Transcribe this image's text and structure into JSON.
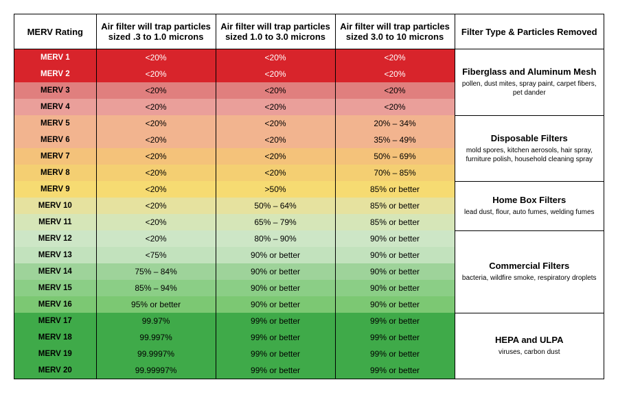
{
  "headers": {
    "col1": "MERV Rating",
    "col2": "Air filter will trap particles sized .3 to 1.0 microns",
    "col3": "Air filter will trap particles sized 1.0 to 3.0 microns",
    "col4": "Air filter will trap particles sized 3.0 to 10 microns",
    "col5": "Filter Type & Particles Removed"
  },
  "rows": [
    {
      "label": "MERV 1",
      "c1": "<20%",
      "c2": "<20%",
      "c3": "<20%",
      "bg": "#d8242b",
      "fg": "#ffffff"
    },
    {
      "label": "MERV 2",
      "c1": "<20%",
      "c2": "<20%",
      "c3": "<20%",
      "bg": "#d8242b",
      "fg": "#ffffff"
    },
    {
      "label": "MERV 3",
      "c1": "<20%",
      "c2": "<20%",
      "c3": "<20%",
      "bg": "#e07f7e",
      "fg": "#000000"
    },
    {
      "label": "MERV 4",
      "c1": "<20%",
      "c2": "<20%",
      "c3": "<20%",
      "bg": "#ea9f9a",
      "fg": "#000000"
    },
    {
      "label": "MERV 5",
      "c1": "<20%",
      "c2": "<20%",
      "c3": "20% – 34%",
      "bg": "#f2b48f",
      "fg": "#000000"
    },
    {
      "label": "MERV 6",
      "c1": "<20%",
      "c2": "<20%",
      "c3": "35% – 49%",
      "bg": "#f2b48f",
      "fg": "#000000"
    },
    {
      "label": "MERV 7",
      "c1": "<20%",
      "c2": "<20%",
      "c3": "50% – 69%",
      "bg": "#f4c27a",
      "fg": "#000000"
    },
    {
      "label": "MERV 8",
      "c1": "<20%",
      "c2": "<20%",
      "c3": "70% – 85%",
      "bg": "#f4cf72",
      "fg": "#000000"
    },
    {
      "label": "MERV 9",
      "c1": "<20%",
      "c2": ">50%",
      "c3": "85% or better",
      "bg": "#f6db72",
      "fg": "#000000"
    },
    {
      "label": "MERV 10",
      "c1": "<20%",
      "c2": "50% – 64%",
      "c3": "85% or better",
      "bg": "#e6e29f",
      "fg": "#000000"
    },
    {
      "label": "MERV 11",
      "c1": "<20%",
      "c2": "65% – 79%",
      "c3": "85% or better",
      "bg": "#d6e6b8",
      "fg": "#000000"
    },
    {
      "label": "MERV 12",
      "c1": "<20%",
      "c2": "80% – 90%",
      "c3": "90% or better",
      "bg": "#cde6c6",
      "fg": "#000000"
    },
    {
      "label": "MERV 13",
      "c1": "<75%",
      "c2": "90% or better",
      "c3": "90% or better",
      "bg": "#c2e2bd",
      "fg": "#000000"
    },
    {
      "label": "MERV 14",
      "c1": "75% – 84%",
      "c2": "90% or better",
      "c3": "90% or better",
      "bg": "#9ed39a",
      "fg": "#000000"
    },
    {
      "label": "MERV 15",
      "c1": "85% – 94%",
      "c2": "90% or better",
      "c3": "90% or better",
      "bg": "#8bce86",
      "fg": "#000000"
    },
    {
      "label": "MERV 16",
      "c1": "95% or better",
      "c2": "90% or better",
      "c3": "90% or better",
      "bg": "#7cc873",
      "fg": "#000000"
    },
    {
      "label": "MERV 17",
      "c1": "99.97%",
      "c2": "99% or better",
      "c3": "99% or better",
      "bg": "#3faa49",
      "fg": "#000000"
    },
    {
      "label": "MERV 18",
      "c1": "99.997%",
      "c2": "99% or better",
      "c3": "99% or better",
      "bg": "#3faa49",
      "fg": "#000000"
    },
    {
      "label": "MERV 19",
      "c1": "99.9997%",
      "c2": "99% or better",
      "c3": "99% or better",
      "bg": "#3faa49",
      "fg": "#000000"
    },
    {
      "label": "MERV 20",
      "c1": "99.99997%",
      "c2": "99% or better",
      "c3": "99% or better",
      "bg": "#3faa49",
      "fg": "#000000"
    }
  ],
  "groups": [
    {
      "start": 0,
      "span": 4,
      "title": "Fiberglass and Aluminum Mesh",
      "desc": "pollen, dust mites, spray paint, carpet fibers, pet dander"
    },
    {
      "start": 4,
      "span": 4,
      "title": "Disposable Filters",
      "desc": "mold spores, kitchen aerosols, hair spray, furniture polish, household cleaning spray"
    },
    {
      "start": 8,
      "span": 3,
      "title": "Home Box Filters",
      "desc": "lead dust, flour, auto fumes, welding fumes"
    },
    {
      "start": 11,
      "span": 5,
      "title": "Commercial Filters",
      "desc": "bacteria, wildfire smoke, respiratory droplets"
    },
    {
      "start": 16,
      "span": 4,
      "title": "HEPA and ULPA",
      "desc": "viruses, carbon dust"
    }
  ],
  "col_widths": {
    "c1": "110px",
    "c2": "160px",
    "c3": "160px",
    "c4": "160px",
    "c5": "200px"
  }
}
